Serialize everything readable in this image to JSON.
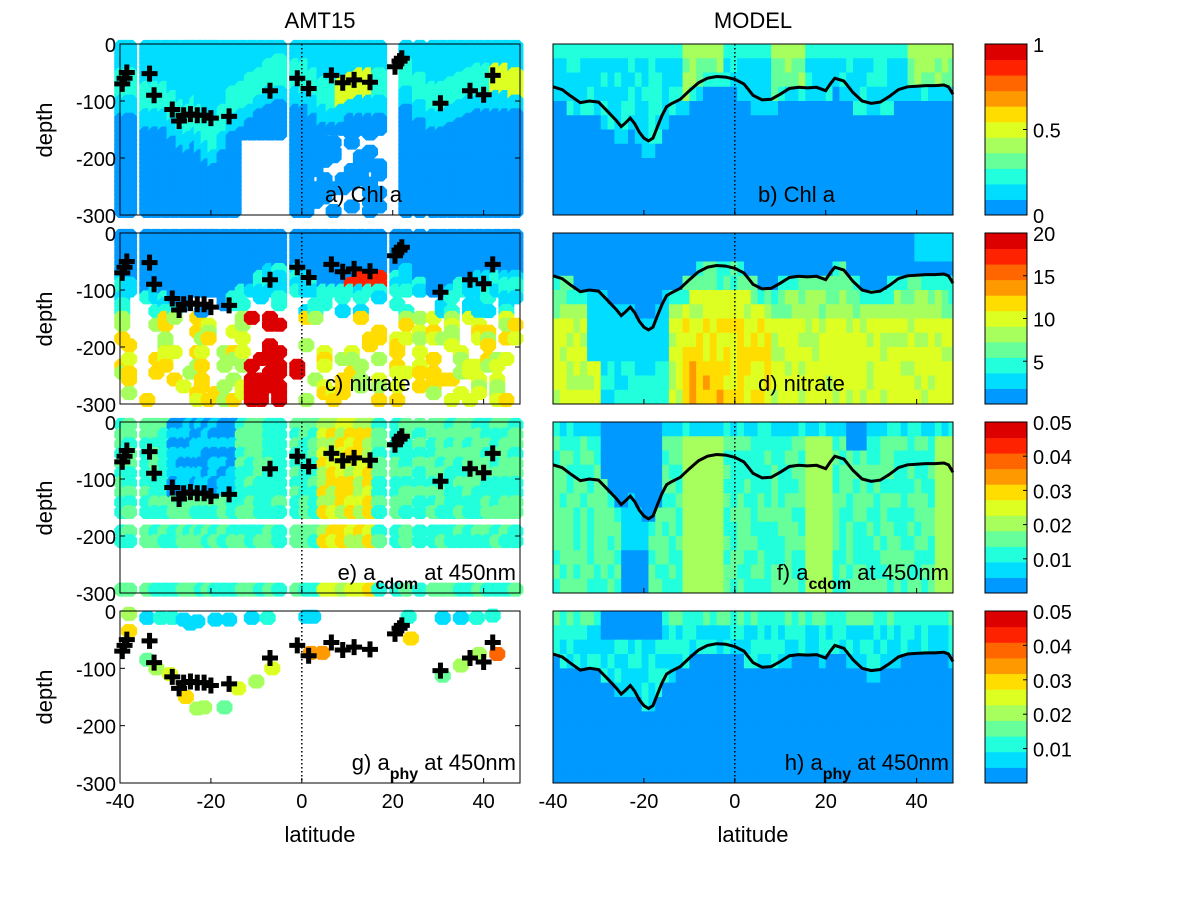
{
  "figure": {
    "column_titles": [
      "AMT15",
      "MODEL"
    ],
    "xlabel": "latitude",
    "ylabel": "depth"
  },
  "chart_data": {
    "type": "heatmap",
    "layout": "4 rows x 2 columns with colorbars",
    "x_axis": {
      "label": "latitude",
      "range": [
        -40,
        48
      ],
      "ticks": [
        -40,
        -20,
        0,
        20,
        40
      ],
      "tick_labels": [
        "-40",
        "-20",
        "0",
        "20",
        "40"
      ]
    },
    "y_axis": {
      "label": "depth",
      "range": [
        -300,
        0
      ],
      "ticks": [
        0,
        -100,
        -200,
        -300
      ],
      "tick_labels": [
        "0",
        "-100",
        "-200",
        "-300"
      ]
    },
    "equator_line": {
      "x": 0,
      "style": "dotted"
    },
    "colormap": [
      "#0099ff",
      "#00ddff",
      "#22ffdd",
      "#66ff99",
      "#a6ff5c",
      "#ddff22",
      "#ffdd00",
      "#ff9900",
      "#ff6600",
      "#ff2200",
      "#dd0000"
    ],
    "mixed_layer_depth": {
      "description": "black line on MODEL panels (depth of max chlorophyll)",
      "lat": [
        -40,
        -38,
        -36,
        -34,
        -32,
        -30,
        -28,
        -26,
        -25,
        -24,
        -23,
        -22,
        -21,
        -20,
        -19,
        -18,
        -17,
        -16,
        -15,
        -14,
        -12,
        -10,
        -8,
        -6,
        -4,
        -2,
        0,
        2,
        3,
        4,
        6,
        8,
        10,
        12,
        14,
        16,
        18,
        20,
        21,
        22,
        24,
        26,
        28,
        30,
        32,
        34,
        36,
        38,
        40,
        42,
        44,
        46,
        47,
        48
      ],
      "depth": [
        -75,
        -80,
        -92,
        -103,
        -100,
        -102,
        -118,
        -135,
        -145,
        -138,
        -130,
        -140,
        -155,
        -165,
        -170,
        -165,
        -145,
        -125,
        -110,
        -105,
        -97,
        -82,
        -68,
        -60,
        -57,
        -58,
        -62,
        -70,
        -80,
        -90,
        -98,
        -97,
        -88,
        -78,
        -76,
        -77,
        -76,
        -82,
        -70,
        -60,
        -65,
        -85,
        -100,
        -104,
        -102,
        -92,
        -80,
        -75,
        -74,
        -73,
        -73,
        -72,
        -75,
        -88
      ]
    },
    "panels": [
      {
        "id": "a",
        "title": "a) Chl a",
        "source": "AMT15",
        "kind": "scatter",
        "colorbar": {
          "range": [
            0,
            1
          ],
          "ticks": [
            "0",
            "0.5",
            "1"
          ]
        },
        "observations_dcm": [
          [
            -39.5,
            -70
          ],
          [
            -39,
            -60
          ],
          [
            -38.5,
            -50
          ],
          [
            -33.5,
            -52
          ],
          [
            -32.5,
            -90
          ],
          [
            -28.5,
            -115
          ],
          [
            -27,
            -135
          ],
          [
            -26,
            -125
          ],
          [
            -24.5,
            -123
          ],
          [
            -23,
            -125
          ],
          [
            -21.5,
            -125
          ],
          [
            -20,
            -130
          ],
          [
            -16,
            -127
          ],
          [
            -7,
            -82
          ],
          [
            -1,
            -60
          ],
          [
            1.5,
            -78
          ],
          [
            6.5,
            -55
          ],
          [
            9,
            -68
          ],
          [
            11.5,
            -63
          ],
          [
            15,
            -67
          ],
          [
            20.5,
            -40
          ],
          [
            21.5,
            -30
          ],
          [
            22,
            -25
          ],
          [
            30.5,
            -104
          ],
          [
            37,
            -82
          ],
          [
            40,
            -89
          ],
          [
            42,
            -55
          ]
        ]
      },
      {
        "id": "b",
        "title": "b) Chl a",
        "source": "MODEL",
        "kind": "heatmap",
        "colorbar": {
          "range": [
            0,
            1
          ],
          "ticks": [
            "0",
            "0.5",
            "1"
          ]
        }
      },
      {
        "id": "c",
        "title": "c) nitrate",
        "source": "AMT15",
        "kind": "scatter",
        "colorbar": {
          "range": [
            0,
            20
          ],
          "ticks": [
            "5",
            "10",
            "15",
            "20"
          ]
        }
      },
      {
        "id": "d",
        "title": "d) nitrate",
        "source": "MODEL",
        "kind": "heatmap",
        "colorbar": {
          "range": [
            0,
            20
          ],
          "ticks": [
            "5",
            "10",
            "15",
            "20"
          ]
        }
      },
      {
        "id": "e",
        "title": "e) a",
        "subscript": "cdom",
        "suffix": " at 450nm",
        "source": "AMT15",
        "kind": "scatter",
        "colorbar": {
          "range": [
            0,
            0.05
          ],
          "ticks": [
            "0.01",
            "0.02",
            "0.03",
            "0.04",
            "0.05"
          ]
        }
      },
      {
        "id": "f",
        "title": "f) a",
        "subscript": "cdom",
        "suffix": " at 450nm",
        "source": "MODEL",
        "kind": "heatmap",
        "colorbar": {
          "range": [
            0,
            0.05
          ],
          "ticks": [
            "0.01",
            "0.02",
            "0.03",
            "0.04",
            "0.05"
          ]
        }
      },
      {
        "id": "g",
        "title": "g) a",
        "subscript": "phy",
        "suffix": " at 450nm",
        "source": "AMT15",
        "kind": "scatter",
        "colorbar": {
          "range": [
            0,
            0.05
          ],
          "ticks": [
            "0.01",
            "0.02",
            "0.03",
            "0.04",
            "0.05"
          ]
        },
        "samples": [
          [
            -38,
            -5,
            0.018
          ],
          [
            -34,
            -12,
            0.005
          ],
          [
            -31,
            -12,
            0.01
          ],
          [
            -28.5,
            -12,
            0.01
          ],
          [
            -26,
            -15,
            0.004
          ],
          [
            -24.5,
            -22,
            0.005
          ],
          [
            -23,
            -18,
            0.004
          ],
          [
            -19,
            -15,
            0.003
          ],
          [
            -16,
            -15,
            0.003
          ],
          [
            -11,
            -12,
            0.006
          ],
          [
            -7.5,
            -12,
            0.009
          ],
          [
            1,
            -10,
            0.006
          ],
          [
            2.5,
            -10,
            0.003
          ],
          [
            23.5,
            -10,
            0.01
          ],
          [
            31,
            -12,
            0.006
          ],
          [
            35,
            -12,
            0.006
          ],
          [
            38.5,
            -12,
            0.01
          ],
          [
            42,
            -8,
            0.012
          ],
          [
            -38,
            -35,
            0.03
          ],
          [
            -34,
            -85,
            0.015
          ],
          [
            -32,
            -100,
            0.02
          ],
          [
            -29,
            -110,
            0.025
          ],
          [
            -25.5,
            -150,
            0.028
          ],
          [
            -23,
            -170,
            0.02
          ],
          [
            -21.5,
            -168,
            0.022
          ],
          [
            -17,
            -168,
            0.015
          ],
          [
            -14,
            -135,
            0.025
          ],
          [
            -10,
            -123,
            0.02
          ],
          [
            -6.5,
            -100,
            0.025
          ],
          [
            2,
            -73,
            0.035
          ],
          [
            4.5,
            -73,
            0.035
          ],
          [
            24,
            -48,
            0.028
          ],
          [
            31,
            -113,
            0.015
          ],
          [
            35,
            -95,
            0.02
          ],
          [
            39,
            -75,
            0.02
          ],
          [
            43,
            -75,
            0.04
          ]
        ],
        "observations_dcm": [
          [
            -39.5,
            -70
          ],
          [
            -39,
            -60
          ],
          [
            -38.5,
            -50
          ],
          [
            -33.5,
            -52
          ],
          [
            -32.5,
            -90
          ],
          [
            -28.5,
            -115
          ],
          [
            -27,
            -135
          ],
          [
            -26,
            -125
          ],
          [
            -24.5,
            -123
          ],
          [
            -23,
            -125
          ],
          [
            -21.5,
            -125
          ],
          [
            -20,
            -130
          ],
          [
            -16,
            -127
          ],
          [
            -7,
            -82
          ],
          [
            -1,
            -60
          ],
          [
            1.5,
            -78
          ],
          [
            6.5,
            -55
          ],
          [
            9,
            -68
          ],
          [
            11.5,
            -63
          ],
          [
            15,
            -67
          ],
          [
            20.5,
            -40
          ],
          [
            21.5,
            -30
          ],
          [
            22,
            -25
          ],
          [
            30.5,
            -104
          ],
          [
            37,
            -82
          ],
          [
            40,
            -89
          ],
          [
            42,
            -55
          ]
        ]
      },
      {
        "id": "h",
        "title": "h) a",
        "subscript": "phy",
        "suffix": " at 450nm",
        "source": "MODEL",
        "kind": "heatmap",
        "colorbar": {
          "range": [
            0,
            0.05
          ],
          "ticks": [
            "0.01",
            "0.02",
            "0.03",
            "0.04",
            "0.05"
          ]
        }
      }
    ]
  }
}
